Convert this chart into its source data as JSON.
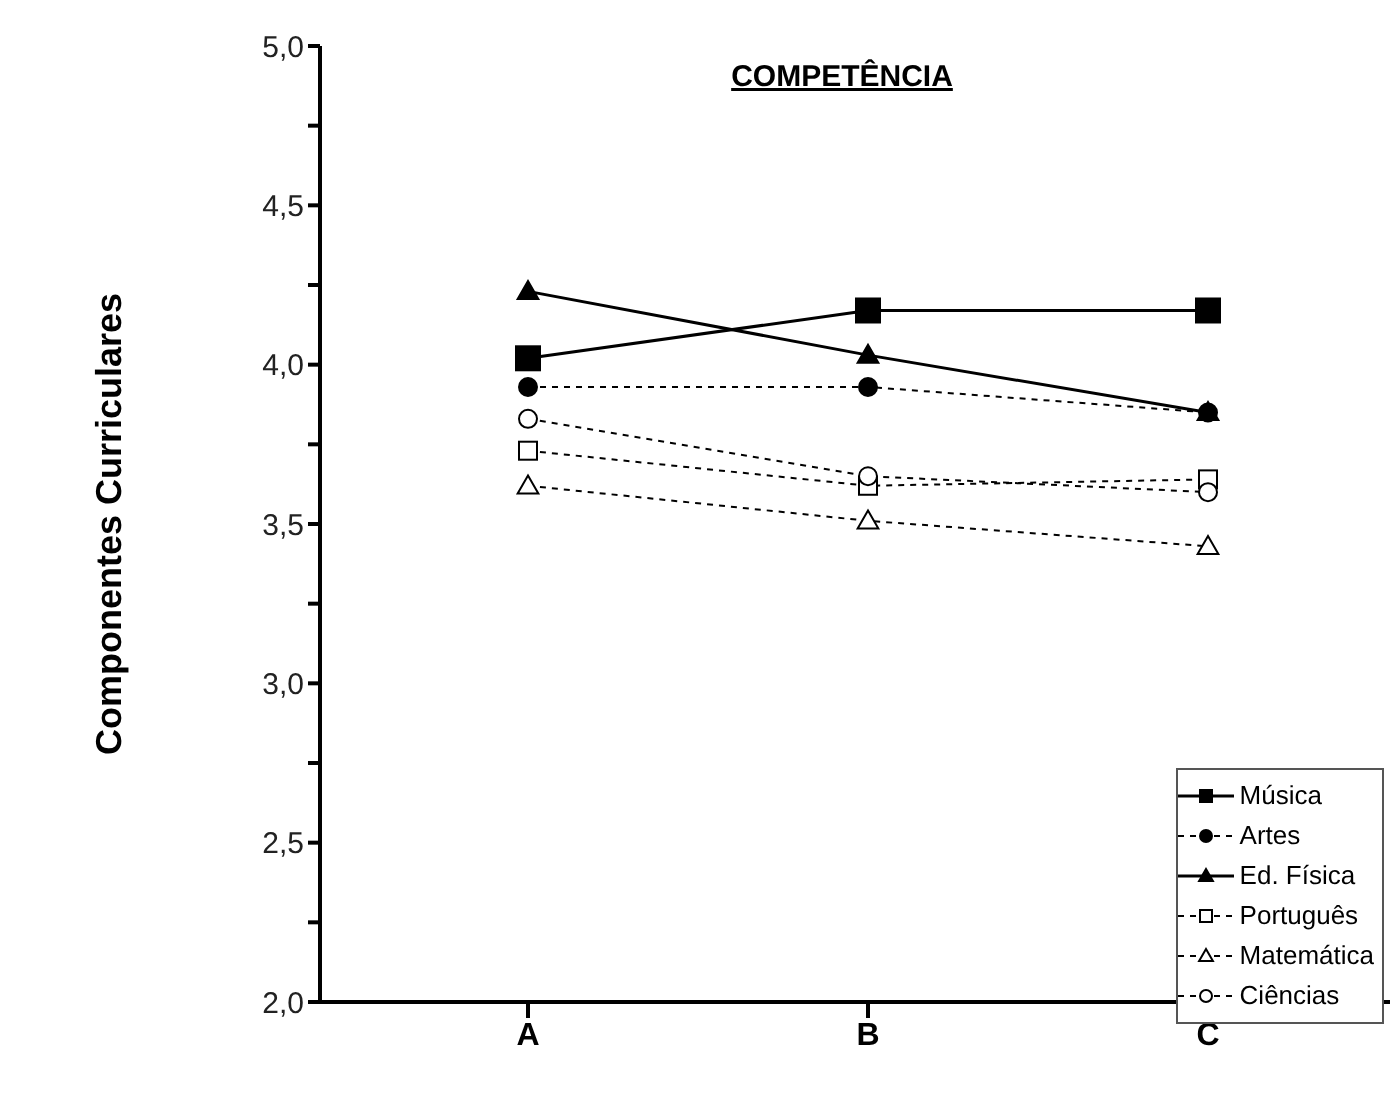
{
  "chart_data": {
    "type": "line",
    "title": "COMPETÊNCIA",
    "ylabel": "Componentes Curriculares",
    "categories": [
      "A",
      "B",
      "C"
    ],
    "series": [
      {
        "name": "Música",
        "color": "#000000",
        "values": [
          4.02,
          4.17,
          4.17
        ],
        "marker": "square",
        "line_style": "solid"
      },
      {
        "name": "Artes",
        "color": "#000000",
        "values": [
          3.93,
          3.93,
          3.85
        ],
        "marker": "circle",
        "line_style": "dashed"
      },
      {
        "name": "Ed. Física",
        "color": "#000000",
        "values": [
          4.23,
          4.03,
          3.85
        ],
        "marker": "triangle",
        "line_style": "solid"
      },
      {
        "name": "Português",
        "color": "#000000",
        "values": [
          3.73,
          3.62,
          3.64
        ],
        "marker": "square",
        "line_style": "dashed"
      },
      {
        "name": "Matemática",
        "color": "#000000",
        "values": [
          3.62,
          3.51,
          3.43
        ],
        "marker": "triangle",
        "line_style": "dashed"
      },
      {
        "name": "Ciências",
        "color": "#000000",
        "values": [
          3.83,
          3.65,
          3.6
        ],
        "marker": "circle",
        "line_style": "dashed"
      }
    ],
    "ylim": [
      2,
      5
    ],
    "yticks": [
      {
        "value": 2,
        "label": "2,0"
      },
      {
        "value": 2.25,
        "label": null
      },
      {
        "value": 2.5,
        "label": "2,5"
      },
      {
        "value": 2.75,
        "label": null
      },
      {
        "value": 3,
        "label": "3,0"
      },
      {
        "value": 3.25,
        "label": null
      },
      {
        "value": 3.5,
        "label": "3,5"
      },
      {
        "value": 3.75,
        "label": null
      },
      {
        "value": 4,
        "label": "4,0"
      },
      {
        "value": 4.25,
        "label": null
      },
      {
        "value": 4.5,
        "label": "4,5"
      },
      {
        "value": 4.75,
        "label": null
      },
      {
        "value": 5,
        "label": "5,0"
      }
    ],
    "grid": false,
    "legend": "bottom right"
  }
}
